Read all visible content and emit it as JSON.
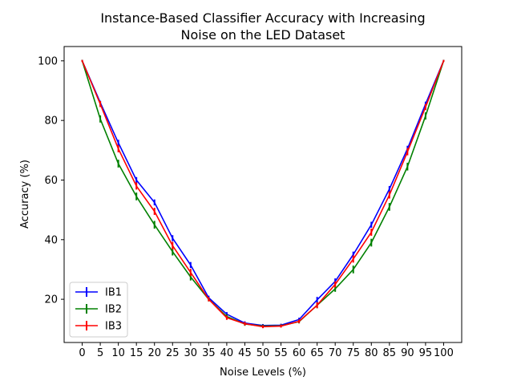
{
  "chart_data": {
    "type": "line",
    "title_line1": "Instance-Based Classifier Accuracy with Increasing",
    "title_line2": "Noise on the LED Dataset",
    "xlabel": "Noise Levels (%)",
    "ylabel": "Accuracy (%)",
    "x": [
      0,
      5,
      10,
      15,
      20,
      25,
      30,
      35,
      40,
      45,
      50,
      55,
      60,
      65,
      70,
      75,
      80,
      85,
      90,
      95,
      100
    ],
    "x_tick_labels": [
      "0",
      "5",
      "10",
      "15",
      "20",
      "25",
      "30",
      "35",
      "40",
      "45",
      "50",
      "55",
      "60",
      "65",
      "70",
      "75",
      "80",
      "85",
      "90",
      "95",
      "100"
    ],
    "y_ticks": [
      20,
      40,
      60,
      80,
      100
    ],
    "xlim": [
      -5,
      105
    ],
    "ylim": [
      5.5,
      104.8
    ],
    "grid": false,
    "legend_position": "lower-left",
    "series": [
      {
        "name": "IB1",
        "color": "#0000ff",
        "values": [
          100,
          86,
          72.5,
          60,
          52.5,
          40.5,
          31.5,
          20.5,
          15,
          12,
          11.2,
          11.3,
          13.2,
          19.8,
          26,
          35,
          45,
          57,
          70.5,
          85.5,
          100
        ],
        "errors": [
          0.3,
          0.6,
          1.0,
          1.0,
          1.0,
          1.0,
          1.0,
          0.7,
          0.7,
          0.6,
          0.5,
          0.5,
          0.6,
          1.0,
          1.0,
          1.0,
          1.0,
          1.0,
          1.0,
          0.8,
          0.3
        ]
      },
      {
        "name": "IB2",
        "color": "#008000",
        "values": [
          100,
          80.5,
          65.5,
          54.5,
          45,
          36,
          27.5,
          20,
          14.2,
          11.7,
          11,
          11.1,
          12.5,
          18,
          23.5,
          30,
          39,
          51,
          64.5,
          81.5,
          100
        ],
        "errors": [
          0.3,
          1.2,
          1.3,
          1.3,
          1.3,
          1.3,
          1.2,
          0.7,
          0.7,
          0.6,
          0.5,
          0.5,
          0.6,
          1.0,
          1.0,
          1.3,
          1.3,
          1.3,
          1.3,
          1.2,
          0.3
        ]
      },
      {
        "name": "IB3",
        "color": "#ff0000",
        "values": [
          100,
          85.5,
          70.5,
          58,
          49.5,
          38,
          29,
          20,
          13.8,
          11.8,
          10.8,
          11,
          12.6,
          18,
          25,
          33.5,
          42.5,
          55,
          69.5,
          84.5,
          100
        ],
        "errors": [
          0.3,
          1.0,
          1.2,
          1.2,
          1.2,
          1.3,
          1.2,
          0.7,
          0.7,
          0.6,
          0.5,
          0.5,
          0.6,
          1.0,
          1.0,
          1.2,
          1.2,
          1.2,
          1.2,
          1.0,
          0.3
        ]
      }
    ]
  }
}
